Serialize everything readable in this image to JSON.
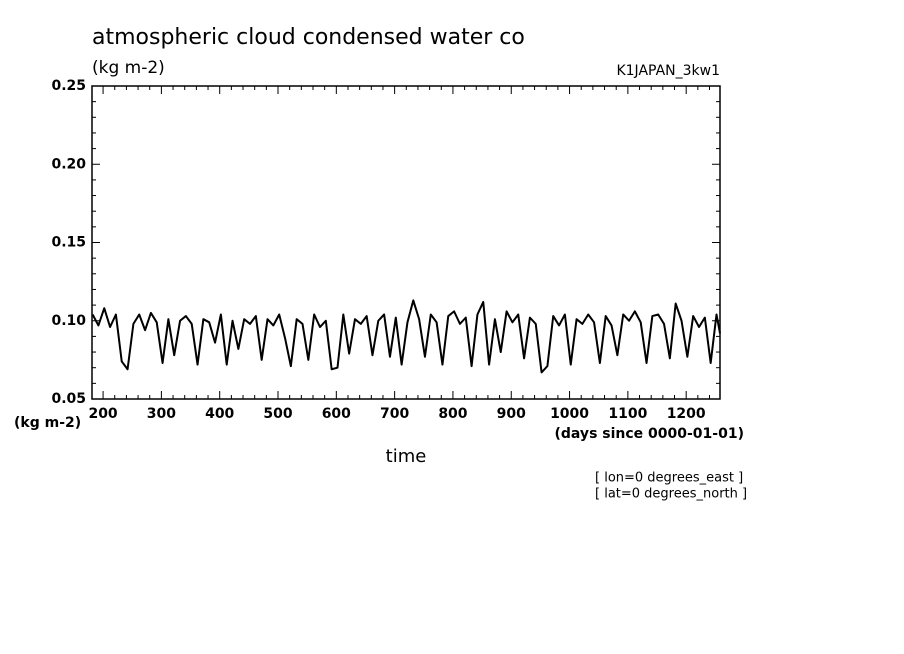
{
  "chart_data": {
    "type": "line",
    "title": "atmospheric cloud condensed water co",
    "subtitle": "(kg m-2)",
    "tag": "K1JAPAN_3kw1",
    "y_label": "(kg m-2)",
    "x_label": "time",
    "x_unit": "(days since 0000-01-01)",
    "annotations": [
      "[ lon=0 degrees_east ]",
      "[ lat=0 degrees_north ]"
    ],
    "color": "#000000",
    "xlim": [
      181,
      1258
    ],
    "ylim": [
      0.05,
      0.25
    ],
    "xticks": [
      200,
      300,
      400,
      500,
      600,
      700,
      800,
      900,
      1000,
      1100,
      1200
    ],
    "yticks": [
      0.05,
      {
        "value": 0.1,
        "label": "0.10"
      },
      0.15,
      {
        "value": 0.2,
        "label": "0.20"
      },
      0.25
    ],
    "xminorticks": [
      220,
      240,
      260,
      280,
      320,
      340,
      360,
      380,
      420,
      440,
      460,
      480,
      520,
      540,
      560,
      580,
      620,
      640,
      660,
      680,
      720,
      740,
      760,
      780,
      820,
      840,
      860,
      880,
      920,
      940,
      960,
      980,
      1020,
      1040,
      1060,
      1080,
      1120,
      1140,
      1160,
      1180,
      1220,
      1240
    ],
    "yminorticks": [
      0.06,
      0.07,
      0.08,
      0.09,
      0.11,
      0.12,
      0.13,
      0.14,
      0.16,
      0.17,
      0.18,
      0.19,
      0.21,
      0.22,
      0.23,
      0.24
    ],
    "x": [
      182,
      192,
      202,
      212,
      222,
      232,
      242,
      252,
      262,
      272,
      282,
      292,
      302,
      312,
      322,
      332,
      342,
      352,
      362,
      372,
      382,
      392,
      402,
      412,
      422,
      432,
      442,
      452,
      462,
      472,
      482,
      492,
      502,
      512,
      522,
      532,
      542,
      552,
      562,
      572,
      582,
      592,
      602,
      612,
      622,
      632,
      642,
      652,
      662,
      672,
      682,
      692,
      702,
      712,
      722,
      732,
      742,
      752,
      762,
      772,
      782,
      792,
      802,
      812,
      822,
      832,
      842,
      852,
      862,
      872,
      882,
      892,
      902,
      912,
      922,
      932,
      942,
      952,
      962,
      972,
      982,
      992,
      1002,
      1012,
      1022,
      1032,
      1042,
      1052,
      1062,
      1072,
      1082,
      1092,
      1102,
      1112,
      1122,
      1132,
      1142,
      1152,
      1162,
      1172,
      1182,
      1192,
      1202,
      1212,
      1222,
      1232,
      1242,
      1252,
      1258
    ],
    "values": [
      0.104,
      0.097,
      0.108,
      0.096,
      0.104,
      0.074,
      0.069,
      0.098,
      0.104,
      0.094,
      0.105,
      0.099,
      0.073,
      0.101,
      0.078,
      0.1,
      0.103,
      0.098,
      0.072,
      0.101,
      0.099,
      0.086,
      0.104,
      0.072,
      0.1,
      0.082,
      0.101,
      0.098,
      0.103,
      0.075,
      0.101,
      0.097,
      0.104,
      0.089,
      0.071,
      0.101,
      0.098,
      0.075,
      0.104,
      0.096,
      0.1,
      0.069,
      0.07,
      0.104,
      0.079,
      0.101,
      0.098,
      0.103,
      0.078,
      0.1,
      0.104,
      0.077,
      0.102,
      0.072,
      0.099,
      0.113,
      0.101,
      0.077,
      0.104,
      0.099,
      0.072,
      0.103,
      0.106,
      0.098,
      0.102,
      0.071,
      0.104,
      0.112,
      0.072,
      0.101,
      0.08,
      0.106,
      0.099,
      0.104,
      0.076,
      0.102,
      0.098,
      0.067,
      0.071,
      0.103,
      0.097,
      0.104,
      0.072,
      0.101,
      0.098,
      0.104,
      0.099,
      0.073,
      0.103,
      0.097,
      0.078,
      0.104,
      0.1,
      0.106,
      0.099,
      0.073,
      0.103,
      0.104,
      0.098,
      0.076,
      0.111,
      0.1,
      0.077,
      0.103,
      0.096,
      0.102,
      0.073,
      0.104,
      0.092
    ]
  }
}
